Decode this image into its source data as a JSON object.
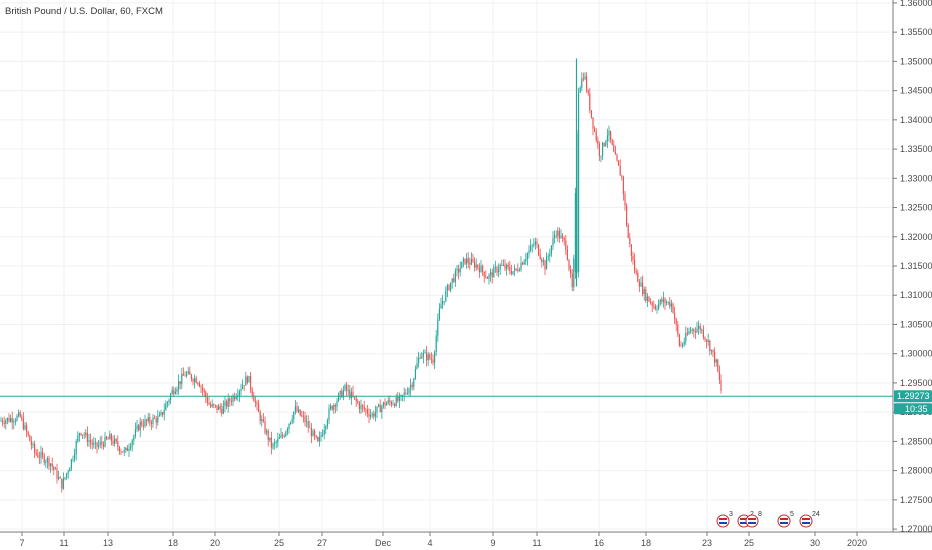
{
  "chart_data": {
    "type": "candlestick",
    "title": "British Pound / U.S. Dollar, 60, FXCM",
    "ylim": [
      1.2695,
      1.3605
    ],
    "y_ticks": [
      "1.36000",
      "1.35500",
      "1.35000",
      "1.34500",
      "1.34000",
      "1.33500",
      "1.33000",
      "1.32500",
      "1.32000",
      "1.31500",
      "1.31000",
      "1.30500",
      "1.30000",
      "1.29500",
      "1.29000",
      "1.28500",
      "1.28000",
      "1.27500",
      "1.27000"
    ],
    "x_ticks": [
      "7",
      "11",
      "13",
      "18",
      "20",
      "25",
      "27",
      "Dec",
      "4",
      "9",
      "11",
      "16",
      "18",
      "23",
      "25",
      "30",
      "2020"
    ],
    "colors": {
      "up": "#26a69a",
      "down": "#ef5350",
      "grid": "#eef0f3",
      "axis": "#555555"
    },
    "last_price": {
      "value": 1.29273,
      "label": "1.29273",
      "countdown": "10:35",
      "color": "#26a69a"
    },
    "key_points": [
      [
        0,
        1.2885
      ],
      [
        20,
        1.2892
      ],
      [
        35,
        1.283
      ],
      [
        50,
        1.2815
      ],
      [
        62,
        1.2775
      ],
      [
        72,
        1.282
      ],
      [
        80,
        1.287
      ],
      [
        95,
        1.284
      ],
      [
        110,
        1.2855
      ],
      [
        125,
        1.283
      ],
      [
        140,
        1.288
      ],
      [
        160,
        1.289
      ],
      [
        172,
        1.2935
      ],
      [
        185,
        1.2965
      ],
      [
        198,
        1.2955
      ],
      [
        210,
        1.291
      ],
      [
        222,
        1.2905
      ],
      [
        235,
        1.293
      ],
      [
        248,
        1.296
      ],
      [
        258,
        1.29
      ],
      [
        272,
        1.284
      ],
      [
        283,
        1.286
      ],
      [
        295,
        1.2905
      ],
      [
        305,
        1.2885
      ],
      [
        318,
        1.2845
      ],
      [
        330,
        1.2905
      ],
      [
        345,
        1.294
      ],
      [
        360,
        1.291
      ],
      [
        372,
        1.2895
      ],
      [
        385,
        1.2915
      ],
      [
        400,
        1.292
      ],
      [
        412,
        1.295
      ],
      [
        420,
        1.3
      ],
      [
        433,
        1.299
      ],
      [
        440,
        1.308
      ],
      [
        450,
        1.312
      ],
      [
        465,
        1.316
      ],
      [
        478,
        1.315
      ],
      [
        488,
        1.313
      ],
      [
        500,
        1.315
      ],
      [
        515,
        1.314
      ],
      [
        525,
        1.3165
      ],
      [
        535,
        1.319
      ],
      [
        545,
        1.315
      ],
      [
        556,
        1.321
      ],
      [
        566,
        1.3185
      ],
      [
        573,
        1.31
      ],
      [
        578,
        1.345
      ],
      [
        584,
        1.348
      ],
      [
        592,
        1.34
      ],
      [
        600,
        1.334
      ],
      [
        608,
        1.338
      ],
      [
        614,
        1.334
      ],
      [
        622,
        1.33
      ],
      [
        628,
        1.32
      ],
      [
        635,
        1.314
      ],
      [
        645,
        1.31
      ],
      [
        655,
        1.308
      ],
      [
        662,
        1.309
      ],
      [
        672,
        1.3085
      ],
      [
        680,
        1.301
      ],
      [
        690,
        1.304
      ],
      [
        700,
        1.3045
      ],
      [
        708,
        1.302
      ],
      [
        716,
        1.2985
      ],
      [
        722,
        1.2927
      ]
    ],
    "events": [
      {
        "x": 723,
        "label": "3"
      },
      {
        "x": 744,
        "label": "2"
      },
      {
        "x": 752,
        "label": "8"
      },
      {
        "x": 784,
        "label": "5"
      },
      {
        "x": 806,
        "label": "24"
      }
    ]
  }
}
